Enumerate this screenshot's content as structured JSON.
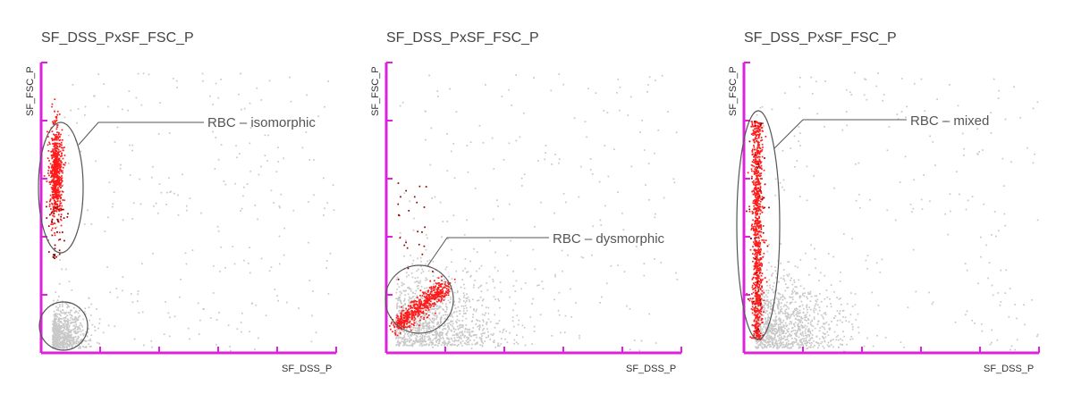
{
  "colors": {
    "axis": "#dd22dd",
    "population_rbc": "#ff1a1a",
    "population_other": "#c8c8c8",
    "gate": "#555555",
    "text": "#444444"
  },
  "chart_data": [
    {
      "type": "scatter",
      "title": "SF_DSS_PxSF_FSC_P",
      "xlabel": "SF_DSS_P",
      "ylabel": "SF_FSC_P",
      "grid": false,
      "legend": "none",
      "gates": [
        {
          "label": "RBC – isomorphic",
          "population": "red cell cluster, low DSS, high FSC"
        },
        {
          "label": "",
          "population": "grey cluster, low DSS, low FSC"
        }
      ],
      "series": [
        {
          "color": "#ff1a1a",
          "cluster": "vertical band near y-axis, high FSC"
        },
        {
          "color": "#c8c8c8",
          "cluster": "diffuse background with dense low corner"
        }
      ]
    },
    {
      "type": "scatter",
      "title": "SF_DSS_PxSF_FSC_P",
      "xlabel": "SF_DSS_P",
      "ylabel": "SF_FSC_P",
      "grid": false,
      "legend": "none",
      "gates": [
        {
          "label": "RBC – dysmorphic",
          "population": "red diagonal cluster, low DSS, low FSC"
        }
      ],
      "series": [
        {
          "color": "#ff1a1a",
          "cluster": "diagonal streak in lower-left corner"
        },
        {
          "color": "#c8c8c8",
          "cluster": "diffuse background, dense bottom-left"
        }
      ]
    },
    {
      "type": "scatter",
      "title": "SF_DSS_PxSF_FSC_P",
      "xlabel": "SF_DSS_P",
      "ylabel": "SF_FSC_P",
      "grid": false,
      "legend": "none",
      "gates": [
        {
          "label": "RBC – mixed",
          "population": "tall red column spanning full FSC range"
        }
      ],
      "series": [
        {
          "color": "#ff1a1a",
          "cluster": "tall narrow column near y-axis"
        },
        {
          "color": "#c8c8c8",
          "cluster": "diffuse background, dense bottom-left"
        }
      ]
    }
  ]
}
